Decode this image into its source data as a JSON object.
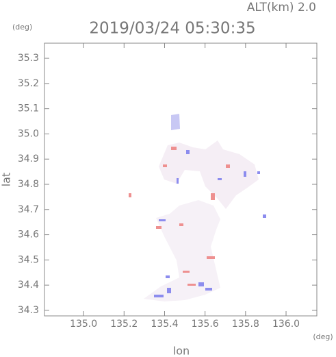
{
  "chart_data": {
    "type": "map",
    "title": "2019/03/24 05:30:35",
    "subtitle": "ALT(km) 2.0",
    "y_unit": "(deg)",
    "x_unit": "(deg)",
    "xlabel": "lon",
    "ylabel": "lat",
    "xlim": [
      134.807,
      136.152
    ],
    "ylim": [
      34.278,
      35.36
    ],
    "xticks": [
      {
        "value": 135,
        "label": "135.0"
      },
      135.2,
      135.4,
      135.6,
      135.8,
      {
        "value": 136,
        "label": "136.0"
      }
    ],
    "yticks": [
      34.3,
      34.4,
      34.5,
      34.6,
      34.7,
      34.8,
      34.9,
      {
        "value": 35,
        "label": "35.0"
      },
      35.1,
      35.2,
      35.3
    ]
  }
}
